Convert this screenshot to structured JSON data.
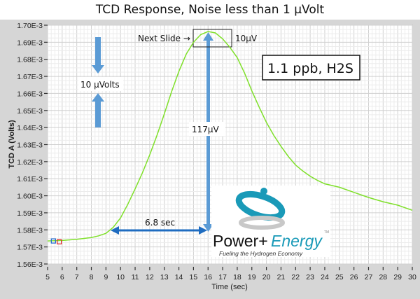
{
  "title": "TCD Response, Noise less than 1 µVolt",
  "chart_data": {
    "type": "line",
    "title": "TCD Response, Noise less than 1 µVolt",
    "xlabel": "Time (sec)",
    "ylabel": "TCD A (Volts)",
    "xlim": [
      5,
      30
    ],
    "ylim": [
      0.00156,
      0.0017
    ],
    "grid": true,
    "x_ticks": [
      "5",
      "6",
      "7",
      "8",
      "9",
      "10",
      "11",
      "12",
      "13",
      "14",
      "15",
      "16",
      "17",
      "18",
      "19",
      "20",
      "21",
      "22",
      "23",
      "24",
      "25",
      "26",
      "27",
      "28",
      "29",
      "30"
    ],
    "y_ticks": [
      "1.70E-3",
      "1.69E-3",
      "1.68E-3",
      "1.67E-3",
      "1.66E-3",
      "1.65E-3",
      "1.64E-3",
      "1.63E-3",
      "1.62E-3",
      "1.61E-3",
      "1.60E-3",
      "1.59E-3",
      "1.58E-3",
      "1.57E-3",
      "1.56E-3"
    ],
    "series": [
      {
        "name": "TCD A",
        "color": "#7fe02a",
        "x": [
          5,
          6,
          7,
          7.5,
          8,
          8.5,
          9,
          9.5,
          10,
          10.5,
          11,
          11.5,
          12,
          12.5,
          13,
          13.5,
          14,
          14.5,
          15,
          15.5,
          16,
          16.5,
          17,
          17.5,
          18,
          18.5,
          19,
          19.5,
          20,
          20.5,
          21,
          21.5,
          22,
          22.5,
          23,
          23.5,
          24,
          25,
          26,
          27,
          28,
          29,
          30
        ],
        "y": [
          0.0015735,
          0.0015738,
          0.0015745,
          0.001575,
          0.0015755,
          0.0015765,
          0.001578,
          0.0015815,
          0.001587,
          0.001595,
          0.001604,
          0.0016135,
          0.001624,
          0.0016355,
          0.001648,
          0.001661,
          0.001673,
          0.001683,
          0.00169,
          0.0016945,
          0.0016963,
          0.0016955,
          0.001692,
          0.001687,
          0.001681,
          0.001672,
          0.0016615,
          0.001652,
          0.001643,
          0.0016355,
          0.001629,
          0.001623,
          0.001618,
          0.0016145,
          0.0016115,
          0.001609,
          0.001607,
          0.001605,
          0.001602,
          0.001599,
          0.0015965,
          0.0015945,
          0.0015915
        ]
      }
    ],
    "cursors": [
      {
        "x": 5.4,
        "y": 0.0015735,
        "color": "#2a6fd0"
      },
      {
        "x": 5.8,
        "y": 0.001573,
        "color": "#e03030"
      }
    ],
    "annotations": {
      "noise_label": "10 µVolts",
      "peak_height_label": "117µV",
      "rise_time_label": "6.8 sec",
      "zoom_box_label": "10µV",
      "next_slide_label": "Next Slide →",
      "sample_label": "1.1 ppb, H2S",
      "arrow_color": "#5b9bd5",
      "arrow_dark_color": "#1f6cc0"
    }
  },
  "logo": {
    "brand_left": "Power+",
    "brand_right": "Energy",
    "tm": "TM",
    "tagline": "Fueling the Hydrogen Economy",
    "accent": "#1a9ab8"
  }
}
